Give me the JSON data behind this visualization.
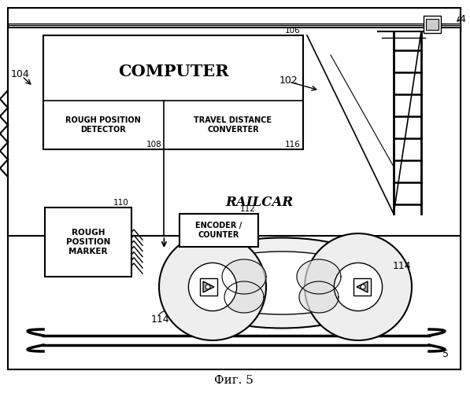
{
  "title": "Фиг. 5",
  "bg_color": "#ffffff",
  "label_4": "4",
  "label_5": "5",
  "label_104": "104",
  "label_102": "102",
  "label_106": "106",
  "label_108": "108",
  "label_110": "110",
  "label_112": "112",
  "label_114": "114",
  "label_116": "116",
  "text_computer": "COMPUTER",
  "text_rough_pos_det": "ROUGH POSITION\nDETECTOR",
  "text_travel_dist": "TRAVEL DISTANCE\nCONVERTER",
  "text_railcar": "RAILCAR",
  "text_rough_pos_marker": "ROUGH\nPOSITION\nMARKER",
  "text_encoder": "ENCODER /\nCOUNTER"
}
